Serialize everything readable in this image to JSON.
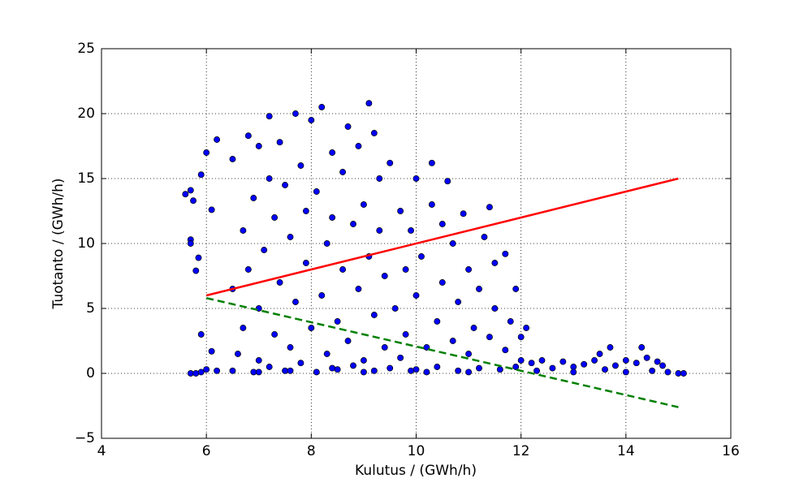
{
  "chart_data": {
    "type": "scatter",
    "xlabel": "Kulutus / (GWh/h)",
    "ylabel": "Tuotanto / (GWh/h)",
    "xlim": [
      4,
      16
    ],
    "xticks": [
      4,
      6,
      8,
      10,
      12,
      14,
      16
    ],
    "ylim": [
      -5,
      25
    ],
    "yticks": [
      {
        "value": -5,
        "label": "−5"
      },
      0,
      5,
      10,
      15,
      20,
      25
    ],
    "grid": true,
    "series": [
      {
        "type": "scatter",
        "color": "#0000ff",
        "x": [
          5.6,
          5.7,
          5.7,
          5.7,
          5.75,
          5.8,
          5.85,
          5.9,
          5.9,
          6,
          6.1,
          6.2,
          6.1,
          5.7,
          5.8,
          5.9,
          6,
          6.2,
          6.5,
          6.5,
          6.5,
          6.6,
          6.7,
          6.7,
          6.8,
          6.8,
          6.9,
          6.9,
          7,
          7,
          7,
          7.1,
          7.2,
          7.2,
          7.2,
          7.3,
          7.3,
          7.4,
          7.4,
          7.5,
          7.5,
          7.6,
          7.6,
          7.7,
          7.7,
          7.8,
          7.8,
          7.9,
          7.9,
          8,
          8,
          8.1,
          8.1,
          8.2,
          8.2,
          8.3,
          8.3,
          8.4,
          8.4,
          8.5,
          8.5,
          8.6,
          8.6,
          8.7,
          8.7,
          8.8,
          8.8,
          8.9,
          8.9,
          9,
          9,
          9.1,
          9.1,
          9.2,
          9.2,
          9.2,
          9.3,
          9.3,
          9.4,
          9.4,
          9.5,
          9.5,
          9.6,
          9.7,
          9.7,
          9.8,
          9.8,
          9.9,
          10,
          10,
          10,
          10.1,
          10.2,
          10.3,
          10.3,
          10.4,
          10.4,
          10.5,
          10.5,
          10.6,
          10.7,
          10.7,
          10.8,
          10.8,
          10.9,
          11,
          11,
          11.1,
          11.2,
          11.2,
          11.3,
          11.4,
          11.4,
          11.5,
          11.5,
          11.6,
          11.7,
          11.7,
          11.8,
          11.9,
          11.9,
          12,
          12,
          12.1,
          12.2,
          12.3,
          12.4,
          12.6,
          12.8,
          13,
          13,
          13.2,
          13.4,
          13.5,
          13.6,
          13.7,
          13.8,
          14,
          14,
          14.2,
          14.3,
          14.4,
          14.5,
          14.6,
          14.7,
          14.8,
          15,
          15.1,
          7,
          7.6,
          8.4,
          9,
          9.9,
          10.2,
          11
        ],
        "values": [
          13.8,
          14.1,
          10.3,
          10,
          13.3,
          7.9,
          8.9,
          15.3,
          3,
          17,
          12.6,
          18,
          1.7,
          0,
          0,
          0.1,
          0.3,
          0.2,
          0.2,
          6.5,
          16.5,
          1.5,
          11,
          3.5,
          18.3,
          8,
          0.1,
          13.5,
          5,
          17.5,
          1,
          9.5,
          15,
          0.5,
          19.8,
          3,
          12,
          7,
          17.8,
          0.2,
          14.5,
          10.5,
          2,
          20,
          5.5,
          16,
          0.8,
          12.5,
          8.5,
          19.5,
          3.5,
          0.1,
          14,
          20.5,
          6,
          10,
          1.5,
          17,
          12,
          4,
          0.3,
          15.5,
          8,
          19,
          2.5,
          11.5,
          0.6,
          17.5,
          6.5,
          13,
          1,
          20.8,
          9,
          4.5,
          0.2,
          18.5,
          15,
          11,
          7.5,
          2,
          16.2,
          0.4,
          5,
          12.5,
          1.2,
          8,
          3,
          11,
          15,
          0.3,
          6,
          9,
          2,
          16.2,
          13,
          4,
          0.5,
          11.5,
          7,
          14.8,
          2.5,
          10,
          5.5,
          0.2,
          12.3,
          8,
          1.5,
          3.5,
          6.5,
          0.4,
          10.5,
          12.8,
          2.8,
          5,
          8.5,
          0.3,
          9.2,
          1.8,
          4,
          6.5,
          0.5,
          2.8,
          1,
          3.5,
          0.8,
          0.2,
          1,
          0.4,
          0.9,
          0.5,
          0.1,
          0.7,
          1,
          1.5,
          0.3,
          2,
          0.6,
          0.1,
          1,
          0.8,
          2,
          1.2,
          0.2,
          0.9,
          0.6,
          0.1,
          0,
          0,
          0.1,
          0.2,
          0.4,
          0.1,
          0.2,
          0.1,
          0.1
        ]
      },
      {
        "type": "line",
        "color": "#ff0000",
        "x": [
          6,
          15
        ],
        "values": [
          6,
          15
        ]
      },
      {
        "type": "line",
        "color": "#008000",
        "dashed": true,
        "x": [
          6,
          15
        ],
        "values": [
          5.8,
          -2.6
        ]
      }
    ]
  }
}
